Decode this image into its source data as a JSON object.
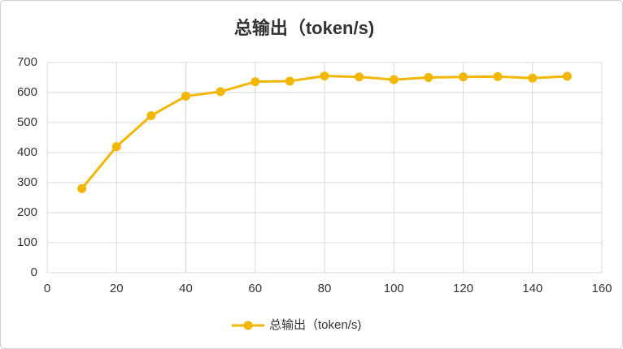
{
  "chart_data": {
    "type": "line",
    "title": "总输出（token/s)",
    "x": [
      10,
      20,
      30,
      40,
      50,
      60,
      70,
      80,
      90,
      100,
      110,
      120,
      130,
      140,
      150
    ],
    "series": [
      {
        "name": "总输出（token/s)",
        "color": "#f2b705",
        "values": [
          280,
          420,
          523,
          588,
          603,
          636,
          638,
          655,
          652,
          643,
          650,
          652,
          653,
          648,
          654
        ]
      }
    ],
    "xlim": [
      0,
      160
    ],
    "xticks": [
      0,
      20,
      40,
      60,
      80,
      100,
      120,
      140,
      160
    ],
    "ylim": [
      0,
      700
    ],
    "yticks": [
      0,
      100,
      200,
      300,
      400,
      500,
      600,
      700
    ],
    "grid": true,
    "legend": "bottom"
  }
}
